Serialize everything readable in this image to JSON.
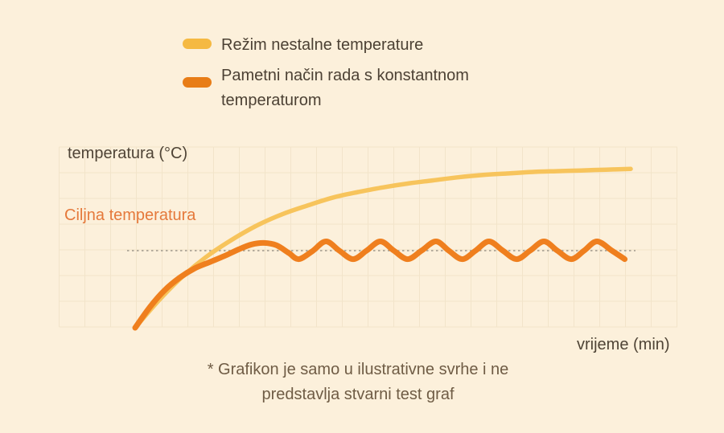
{
  "colors": {
    "background": "#FCF0DB",
    "text_dark": "#4C4134",
    "text_footnote": "#6F5C45",
    "target_label": "#E5793B",
    "grid": "#F2E4CA",
    "target_line": "#9E988C",
    "series_unsteady": "#F7C45C",
    "series_smart": "#EF7F1E",
    "legend_unsteady": "#F5B942",
    "legend_smart": "#E87D17"
  },
  "legend": {
    "items": [
      {
        "label": "Režim nestalne temperature",
        "color": "#F5B942"
      },
      {
        "label": "Pametni način rada s konstantnom temperaturom",
        "color": "#E87D17"
      }
    ]
  },
  "footnote": {
    "line1": "* Grafikon je samo u ilustrativne svrhe i ne",
    "line2": "predstavlja stvarni test graf"
  },
  "chart_data": {
    "type": "line",
    "title": "",
    "xlabel": "vrijeme (min)",
    "ylabel": "temperatura (°C)",
    "grid": true,
    "axis_ticks": "none (illustrative chart, no numeric tick labels shown)",
    "x_range_relative": [
      0,
      100
    ],
    "y_units": "relative temperature, target = 1.0, start = 0",
    "target_line": {
      "label": "Ciljna temperatura",
      "value": 1.0,
      "style": "dotted",
      "color": "#9E988C"
    },
    "legend_position": "top",
    "series": [
      {
        "name": "Režim nestalne temperature",
        "color": "#F7C45C",
        "stroke_width": 5.5,
        "behavior": "rises past target and keeps climbing toward ~2.06",
        "x": [
          0,
          5,
          10,
          15,
          20,
          25,
          30,
          35,
          40,
          45,
          50,
          55,
          60,
          65,
          70,
          75,
          80,
          85,
          90,
          95,
          100
        ],
        "y": [
          0,
          0.37,
          0.69,
          0.95,
          1.16,
          1.34,
          1.48,
          1.59,
          1.69,
          1.76,
          1.82,
          1.87,
          1.91,
          1.95,
          1.98,
          2.0,
          2.02,
          2.03,
          2.04,
          2.05,
          2.06
        ]
      },
      {
        "name": "Pametni način rada s konstantnom temperaturom",
        "color": "#EF7F1E",
        "stroke_width": 7,
        "behavior": "rises to target then oscillates gently around 1.0 (±0.12)",
        "x": [
          0,
          3,
          6,
          9,
          12,
          15,
          18,
          21,
          23.5,
          26,
          28.5,
          31,
          33,
          35.7,
          38.5,
          41.2,
          44,
          46.7,
          49.5,
          52.2,
          55,
          57.8,
          60.7,
          63.3,
          66,
          68.7,
          71.4,
          74.2,
          77,
          79.7,
          82.5,
          85.2,
          88,
          90.6,
          93.2,
          96.2,
          98.8
        ],
        "y": [
          0,
          0.27,
          0.49,
          0.65,
          0.77,
          0.85,
          0.93,
          1.02,
          1.08,
          1.1,
          1.07,
          0.97,
          0.89,
          0.99,
          1.12,
          1.0,
          0.89,
          1.0,
          1.12,
          1.0,
          0.89,
          1.0,
          1.12,
          1.0,
          0.89,
          1.0,
          1.12,
          1.0,
          0.89,
          1.0,
          1.12,
          1.0,
          0.89,
          1.0,
          1.12,
          1.0,
          0.89
        ]
      }
    ]
  }
}
